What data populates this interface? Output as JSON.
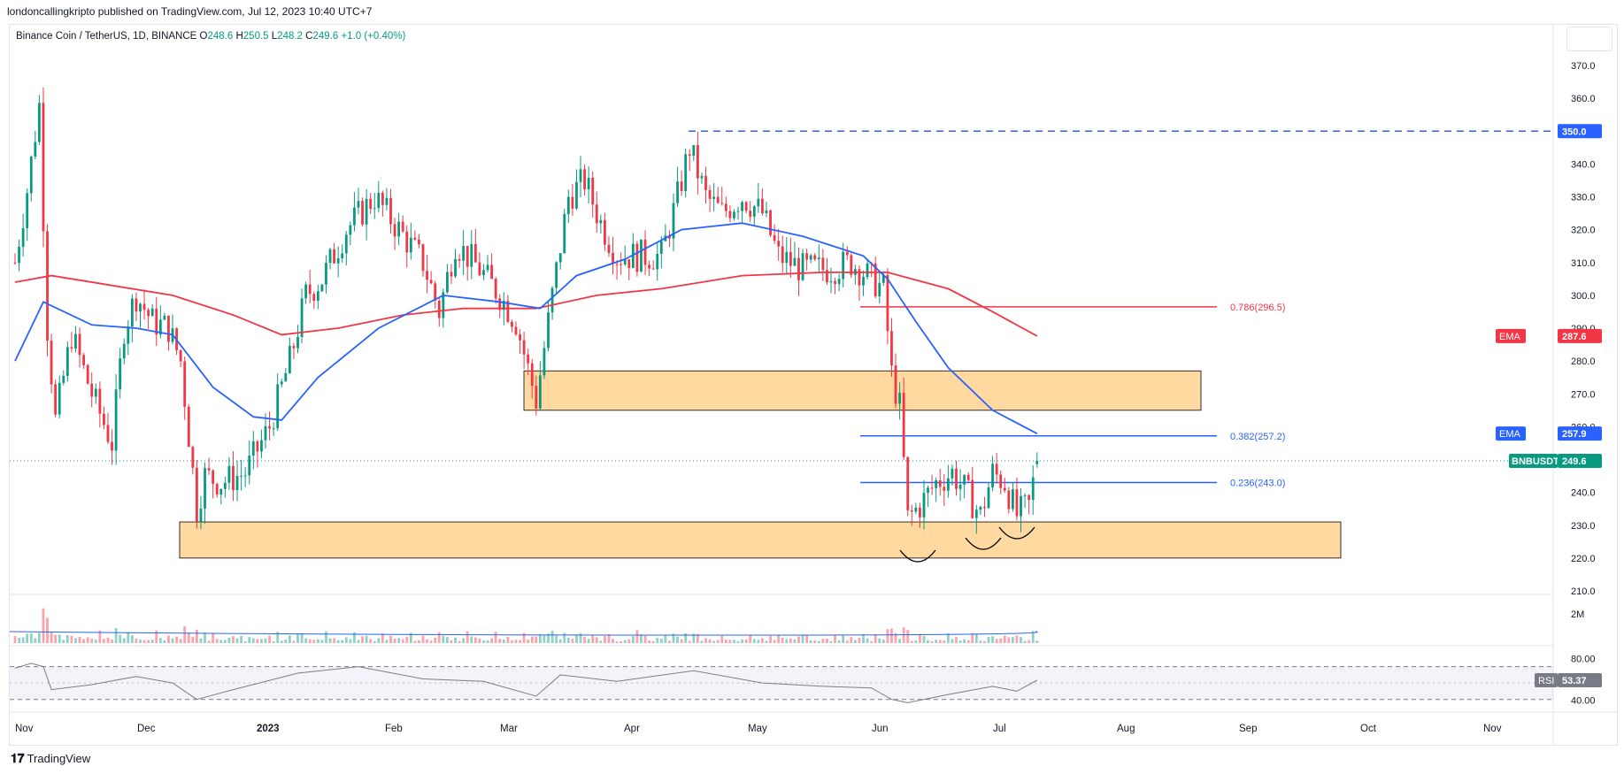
{
  "header": {
    "published": "londoncallingkripto published on TradingView.com, Jul 12, 2023 10:40 UTC+7"
  },
  "legend": {
    "symbol": "Binance Coin / TetherUS, 1D, BINANCE",
    "open": "248.6",
    "high": "250.5",
    "low": "248.2",
    "close": "249.6",
    "change": "+1.0 (+0.40%)"
  },
  "footer": {
    "brand": "TradingView"
  },
  "colors": {
    "up": "#089981",
    "down": "#f23645",
    "ema_fast": "#2962ff",
    "ema_slow": "#f23645",
    "zone_fill": "#ffcc80",
    "zone_border": "#000000",
    "rsi": "#7e7e7e",
    "rsi_band": "#7e57c2"
  },
  "chart_data": {
    "type": "candlestick",
    "symbol": "BNBUSDT",
    "interval": "1D",
    "ylim": [
      210,
      375
    ],
    "y_ticks": [
      "370.0",
      "360.0",
      "350.0",
      "340.0",
      "330.0",
      "320.0",
      "310.0",
      "300.0",
      "290.0",
      "280.0",
      "270.0",
      "260.0",
      "250.0",
      "240.0",
      "230.0",
      "220.0",
      "210.0"
    ],
    "x_ticks": [
      "Nov",
      "Dec",
      "2023",
      "Feb",
      "Mar",
      "Apr",
      "May",
      "Jun",
      "Jul",
      "Aug",
      "Sep",
      "Oct",
      "Nov"
    ],
    "last_price": {
      "label": "BNBUSDT",
      "value": "249.6"
    },
    "ema_labels": [
      {
        "label": "EMA",
        "value": "287.6"
      },
      {
        "label": "EMA",
        "value": "257.9"
      }
    ],
    "resistance_line": {
      "value": "350.0"
    },
    "fib_levels": [
      {
        "label": "0.786(296.5)",
        "value": 296.5
      },
      {
        "label": "0.382(257.2)",
        "value": 257.2
      },
      {
        "label": "0.236(243.0)",
        "value": 243.0
      }
    ],
    "zones": [
      {
        "from": "Mar 9",
        "to": "Aug 20",
        "low": 265,
        "high": 277
      },
      {
        "from": "Dec 1",
        "to": "Sep 15",
        "low": 220,
        "high": 231
      }
    ],
    "close_path": [
      {
        "date": "2022-11-01",
        "close": 310
      },
      {
        "date": "2022-11-04",
        "close": 332
      },
      {
        "date": "2022-11-07",
        "close": 358
      },
      {
        "date": "2022-11-09",
        "close": 290
      },
      {
        "date": "2022-11-11",
        "close": 262
      },
      {
        "date": "2022-11-15",
        "close": 288
      },
      {
        "date": "2022-11-20",
        "close": 270
      },
      {
        "date": "2022-11-25",
        "close": 255
      },
      {
        "date": "2022-11-28",
        "close": 290
      },
      {
        "date": "2022-12-01",
        "close": 300
      },
      {
        "date": "2022-12-05",
        "close": 292
      },
      {
        "date": "2022-12-09",
        "close": 290
      },
      {
        "date": "2022-12-12",
        "close": 280
      },
      {
        "date": "2022-12-16",
        "close": 235
      },
      {
        "date": "2022-12-18",
        "close": 245
      },
      {
        "date": "2022-12-22",
        "close": 243
      },
      {
        "date": "2022-12-28",
        "close": 246
      },
      {
        "date": "2023-01-03",
        "close": 260
      },
      {
        "date": "2023-01-08",
        "close": 280
      },
      {
        "date": "2023-01-12",
        "close": 300
      },
      {
        "date": "2023-01-16",
        "close": 305
      },
      {
        "date": "2023-01-22",
        "close": 320
      },
      {
        "date": "2023-01-29",
        "close": 330
      },
      {
        "date": "2023-02-04",
        "close": 320
      },
      {
        "date": "2023-02-10",
        "close": 310
      },
      {
        "date": "2023-02-14",
        "close": 295
      },
      {
        "date": "2023-02-18",
        "close": 316
      },
      {
        "date": "2023-02-24",
        "close": 308
      },
      {
        "date": "2023-03-01",
        "close": 300
      },
      {
        "date": "2023-03-05",
        "close": 292
      },
      {
        "date": "2023-03-10",
        "close": 268
      },
      {
        "date": "2023-03-14",
        "close": 300
      },
      {
        "date": "2023-03-18",
        "close": 330
      },
      {
        "date": "2023-03-22",
        "close": 335
      },
      {
        "date": "2023-03-26",
        "close": 322
      },
      {
        "date": "2023-03-30",
        "close": 312
      },
      {
        "date": "2023-04-05",
        "close": 312
      },
      {
        "date": "2023-04-10",
        "close": 312
      },
      {
        "date": "2023-04-14",
        "close": 330
      },
      {
        "date": "2023-04-17",
        "close": 345
      },
      {
        "date": "2023-04-21",
        "close": 330
      },
      {
        "date": "2023-04-25",
        "close": 325
      },
      {
        "date": "2023-04-30",
        "close": 330
      },
      {
        "date": "2023-05-05",
        "close": 325
      },
      {
        "date": "2023-05-09",
        "close": 312
      },
      {
        "date": "2023-05-15",
        "close": 308
      },
      {
        "date": "2023-05-22",
        "close": 308
      },
      {
        "date": "2023-05-27",
        "close": 310
      },
      {
        "date": "2023-06-01",
        "close": 305
      },
      {
        "date": "2023-06-04",
        "close": 302
      },
      {
        "date": "2023-06-06",
        "close": 276
      },
      {
        "date": "2023-06-08",
        "close": 266
      },
      {
        "date": "2023-06-10",
        "close": 232
      },
      {
        "date": "2023-06-13",
        "close": 236
      },
      {
        "date": "2023-06-17",
        "close": 243
      },
      {
        "date": "2023-06-21",
        "close": 246
      },
      {
        "date": "2023-06-24",
        "close": 241
      },
      {
        "date": "2023-06-28",
        "close": 233
      },
      {
        "date": "2023-07-01",
        "close": 246
      },
      {
        "date": "2023-07-04",
        "close": 243
      },
      {
        "date": "2023-07-07",
        "close": 233
      },
      {
        "date": "2023-07-10",
        "close": 236
      },
      {
        "date": "2023-07-12",
        "close": 249.6
      }
    ],
    "ema_fast_path": [
      {
        "date": "2022-11-01",
        "value": 280
      },
      {
        "date": "2022-11-08",
        "value": 298
      },
      {
        "date": "2022-11-20",
        "value": 291
      },
      {
        "date": "2022-12-01",
        "value": 290
      },
      {
        "date": "2022-12-10",
        "value": 288
      },
      {
        "date": "2022-12-20",
        "value": 272
      },
      {
        "date": "2022-12-30",
        "value": 263
      },
      {
        "date": "2023-01-06",
        "value": 262
      },
      {
        "date": "2023-01-15",
        "value": 275
      },
      {
        "date": "2023-01-30",
        "value": 290
      },
      {
        "date": "2023-02-15",
        "value": 300
      },
      {
        "date": "2023-03-01",
        "value": 298
      },
      {
        "date": "2023-03-11",
        "value": 296
      },
      {
        "date": "2023-03-20",
        "value": 306
      },
      {
        "date": "2023-04-01",
        "value": 311
      },
      {
        "date": "2023-04-15",
        "value": 320
      },
      {
        "date": "2023-04-30",
        "value": 322
      },
      {
        "date": "2023-05-15",
        "value": 318
      },
      {
        "date": "2023-05-30",
        "value": 312
      },
      {
        "date": "2023-06-05",
        "value": 305
      },
      {
        "date": "2023-06-12",
        "value": 292
      },
      {
        "date": "2023-06-20",
        "value": 278
      },
      {
        "date": "2023-07-01",
        "value": 265
      },
      {
        "date": "2023-07-12",
        "value": 257.9
      }
    ],
    "ema_slow_path": [
      {
        "date": "2022-11-01",
        "value": 304
      },
      {
        "date": "2022-11-10",
        "value": 306
      },
      {
        "date": "2022-11-25",
        "value": 303
      },
      {
        "date": "2022-12-10",
        "value": 300
      },
      {
        "date": "2022-12-25",
        "value": 294
      },
      {
        "date": "2023-01-06",
        "value": 288
      },
      {
        "date": "2023-01-20",
        "value": 290
      },
      {
        "date": "2023-02-05",
        "value": 294
      },
      {
        "date": "2023-02-20",
        "value": 296
      },
      {
        "date": "2023-03-10",
        "value": 296
      },
      {
        "date": "2023-03-25",
        "value": 300
      },
      {
        "date": "2023-04-10",
        "value": 302
      },
      {
        "date": "2023-04-30",
        "value": 306
      },
      {
        "date": "2023-05-20",
        "value": 307
      },
      {
        "date": "2023-06-05",
        "value": 307
      },
      {
        "date": "2023-06-20",
        "value": 302
      },
      {
        "date": "2023-07-01",
        "value": 295
      },
      {
        "date": "2023-07-12",
        "value": 287.6
      }
    ],
    "volume": {
      "axis_label": "2M"
    },
    "rsi": {
      "label": "RSI",
      "value": "53.37",
      "band": [
        30,
        70
      ],
      "ticks": [
        "80.00",
        "40.00"
      ],
      "path": [
        {
          "date": "2022-11-01",
          "value": 68
        },
        {
          "date": "2022-11-05",
          "value": 74
        },
        {
          "date": "2022-11-08",
          "value": 70
        },
        {
          "date": "2022-11-10",
          "value": 42
        },
        {
          "date": "2022-11-20",
          "value": 48
        },
        {
          "date": "2022-12-01",
          "value": 58
        },
        {
          "date": "2022-12-10",
          "value": 50
        },
        {
          "date": "2022-12-16",
          "value": 30
        },
        {
          "date": "2022-12-25",
          "value": 42
        },
        {
          "date": "2023-01-10",
          "value": 62
        },
        {
          "date": "2023-01-25",
          "value": 70
        },
        {
          "date": "2023-02-10",
          "value": 55
        },
        {
          "date": "2023-02-25",
          "value": 52
        },
        {
          "date": "2023-03-10",
          "value": 34
        },
        {
          "date": "2023-03-16",
          "value": 60
        },
        {
          "date": "2023-03-30",
          "value": 52
        },
        {
          "date": "2023-04-18",
          "value": 65
        },
        {
          "date": "2023-05-05",
          "value": 50
        },
        {
          "date": "2023-05-20",
          "value": 46
        },
        {
          "date": "2023-06-01",
          "value": 44
        },
        {
          "date": "2023-06-06",
          "value": 30
        },
        {
          "date": "2023-06-10",
          "value": 26
        },
        {
          "date": "2023-06-20",
          "value": 36
        },
        {
          "date": "2023-07-01",
          "value": 46
        },
        {
          "date": "2023-07-07",
          "value": 40
        },
        {
          "date": "2023-07-12",
          "value": 53.37
        }
      ]
    }
  }
}
